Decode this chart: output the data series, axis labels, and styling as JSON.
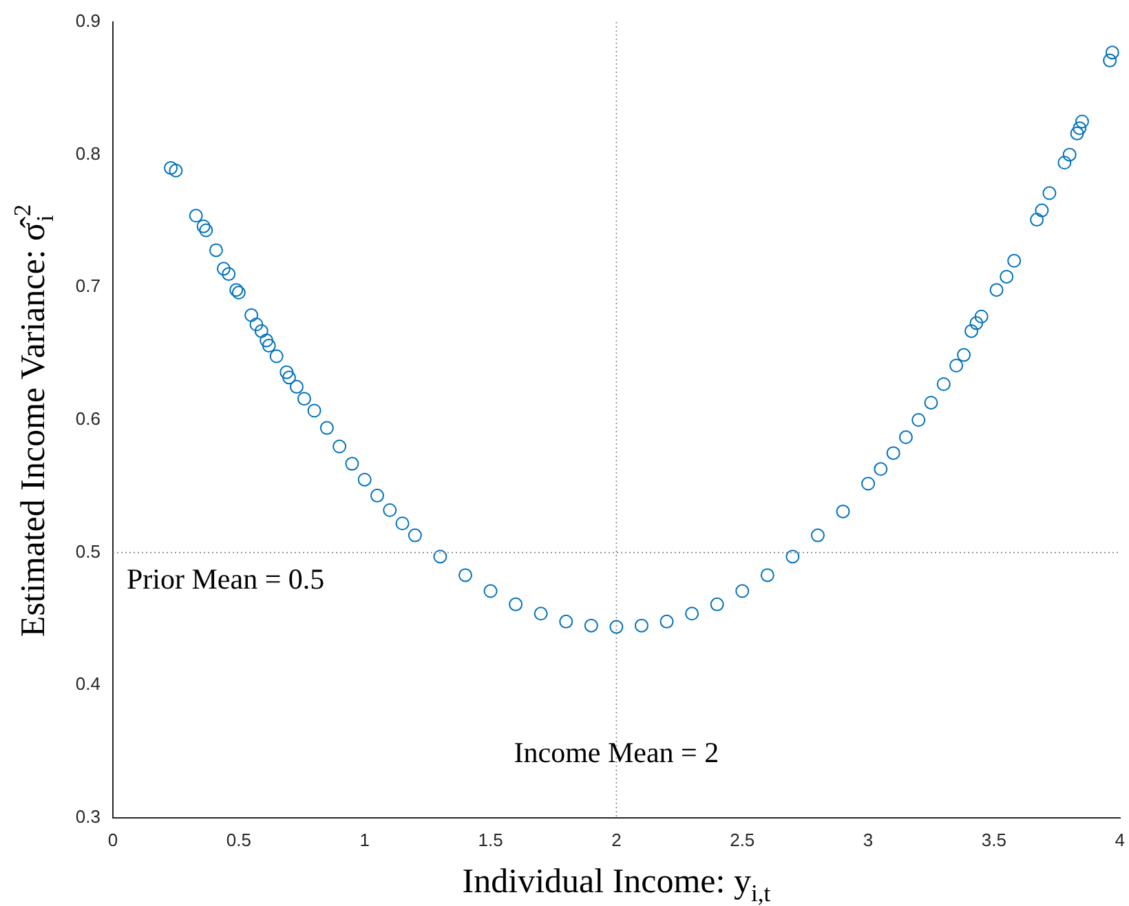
{
  "chart_data": {
    "type": "scatter",
    "xlabel": "Individual Income: y$_{i,t}$",
    "ylabel": "Estimated Income Variance: σ̂$_{i}$$^{2}$",
    "xlim": [
      0,
      4
    ],
    "xticks": [
      0,
      0.5,
      1,
      1.5,
      2,
      2.5,
      3,
      3.5,
      4
    ],
    "ylim": [
      0.3,
      0.9
    ],
    "yticks": [
      0.3,
      0.4,
      0.5,
      0.6,
      0.7,
      0.8,
      0.9
    ],
    "grid": false,
    "legend": false,
    "marker": "circle",
    "ref_lines": [
      {
        "axis": "x",
        "value": 2,
        "label": "Income Mean = 2",
        "color": "#808080",
        "line_style": "dotted"
      },
      {
        "axis": "y",
        "value": 0.5,
        "label": "Prior Mean = 0.5",
        "color": "#808080",
        "line_style": "dotted"
      }
    ],
    "series": [
      {
        "color": "#0072bd",
        "x": [
          0.23,
          0.25,
          0.33,
          0.36,
          0.37,
          0.41,
          0.44,
          0.46,
          0.49,
          0.5,
          0.55,
          0.57,
          0.59,
          0.61,
          0.62,
          0.65,
          0.69,
          0.7,
          0.73,
          0.76,
          0.8,
          0.85,
          0.9,
          0.95,
          1.0,
          1.05,
          1.1,
          1.15,
          1.2,
          1.3,
          1.4,
          1.5,
          1.6,
          1.7,
          1.8,
          1.9,
          2.0,
          2.1,
          2.2,
          2.3,
          2.4,
          2.5,
          2.6,
          2.7,
          2.8,
          2.9,
          3.0,
          3.05,
          3.1,
          3.15,
          3.2,
          3.25,
          3.3,
          3.35,
          3.38,
          3.41,
          3.43,
          3.45,
          3.51,
          3.55,
          3.58,
          3.67,
          3.69,
          3.72,
          3.78,
          3.8,
          3.83,
          3.84,
          3.85,
          3.96,
          3.97
        ],
        "values": [
          0.79,
          0.788,
          0.754,
          0.746,
          0.743,
          0.728,
          0.714,
          0.71,
          0.698,
          0.696,
          0.679,
          0.672,
          0.667,
          0.66,
          0.656,
          0.648,
          0.636,
          0.632,
          0.625,
          0.616,
          0.607,
          0.594,
          0.58,
          0.567,
          0.555,
          0.543,
          0.532,
          0.522,
          0.513,
          0.497,
          0.483,
          0.471,
          0.461,
          0.454,
          0.448,
          0.445,
          0.444,
          0.445,
          0.448,
          0.454,
          0.461,
          0.471,
          0.483,
          0.497,
          0.513,
          0.531,
          0.552,
          0.563,
          0.575,
          0.587,
          0.6,
          0.613,
          0.627,
          0.641,
          0.649,
          0.667,
          0.673,
          0.678,
          0.698,
          0.708,
          0.72,
          0.751,
          0.758,
          0.771,
          0.794,
          0.8,
          0.816,
          0.82,
          0.825,
          0.871,
          0.877
        ]
      }
    ]
  }
}
